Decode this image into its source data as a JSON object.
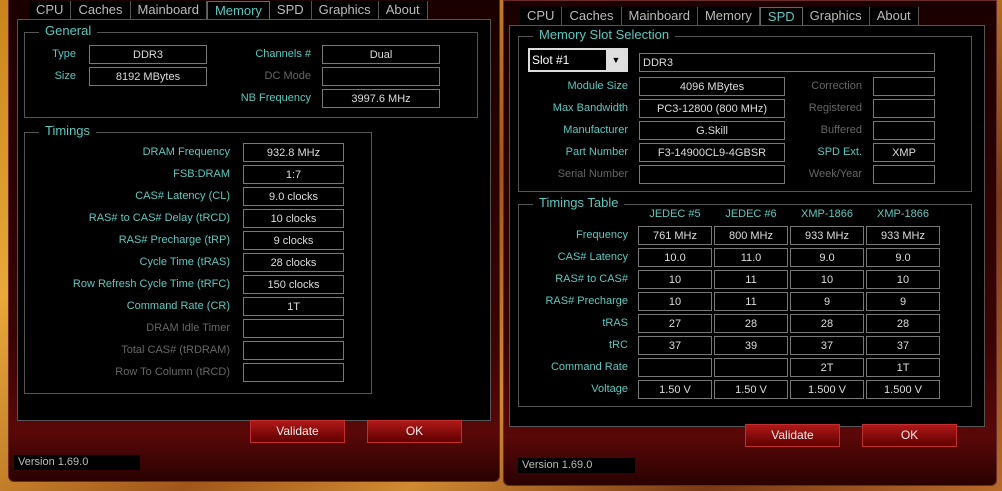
{
  "tabs": [
    "CPU",
    "Caches",
    "Mainboard",
    "Memory",
    "SPD",
    "Graphics",
    "About"
  ],
  "left": {
    "general_title": "General",
    "type_label": "Type",
    "type": "DDR3",
    "size_label": "Size",
    "size": "8192 MBytes",
    "channels_label": "Channels #",
    "channels": "Dual",
    "dc_mode_label": "DC Mode",
    "dc_mode": "",
    "nb_freq_label": "NB Frequency",
    "nb_freq": "3997.6 MHz",
    "timings_title": "Timings",
    "timings": [
      {
        "label": "DRAM Frequency",
        "value": "932.8 MHz"
      },
      {
        "label": "FSB:DRAM",
        "value": "1:7"
      },
      {
        "label": "CAS# Latency (CL)",
        "value": "9.0 clocks"
      },
      {
        "label": "RAS# to CAS# Delay (tRCD)",
        "value": "10 clocks"
      },
      {
        "label": "RAS# Precharge (tRP)",
        "value": "9 clocks"
      },
      {
        "label": "Cycle Time (tRAS)",
        "value": "28 clocks"
      },
      {
        "label": "Row Refresh Cycle Time (tRFC)",
        "value": "150 clocks"
      },
      {
        "label": "Command Rate (CR)",
        "value": "1T"
      },
      {
        "label": "DRAM Idle Timer",
        "value": ""
      },
      {
        "label": "Total CAS# (tRDRAM)",
        "value": ""
      },
      {
        "label": "Row To Column (tRCD)",
        "value": ""
      }
    ]
  },
  "right": {
    "slot_title": "Memory Slot Selection",
    "slot": "Slot #1",
    "mem_type": "DDR3",
    "rows": [
      {
        "label": "Module Size",
        "value": "4096 MBytes",
        "rlabel": "Correction",
        "rvalue": ""
      },
      {
        "label": "Max Bandwidth",
        "value": "PC3-12800 (800 MHz)",
        "rlabel": "Registered",
        "rvalue": ""
      },
      {
        "label": "Manufacturer",
        "value": "G.Skill",
        "rlabel": "Buffered",
        "rvalue": ""
      },
      {
        "label": "Part Number",
        "value": "F3-14900CL9-4GBSR",
        "rlabel": "SPD Ext.",
        "rvalue": "XMP"
      },
      {
        "label": "Serial Number",
        "value": "",
        "rlabel": "Week/Year",
        "rvalue": ""
      }
    ],
    "table_title": "Timings Table",
    "columns": [
      "JEDEC #5",
      "JEDEC #6",
      "XMP-1866",
      "XMP-1866"
    ],
    "table": [
      {
        "label": "Frequency",
        "values": [
          "761 MHz",
          "800 MHz",
          "933 MHz",
          "933 MHz"
        ]
      },
      {
        "label": "CAS# Latency",
        "values": [
          "10.0",
          "11.0",
          "9.0",
          "9.0"
        ]
      },
      {
        "label": "RAS# to CAS#",
        "values": [
          "10",
          "11",
          "10",
          "10"
        ]
      },
      {
        "label": "RAS# Precharge",
        "values": [
          "10",
          "11",
          "9",
          "9"
        ]
      },
      {
        "label": "tRAS",
        "values": [
          "27",
          "28",
          "28",
          "28"
        ]
      },
      {
        "label": "tRC",
        "values": [
          "37",
          "39",
          "37",
          "37"
        ]
      },
      {
        "label": "Command Rate",
        "values": [
          "",
          "",
          "2T",
          "1T"
        ]
      },
      {
        "label": "Voltage",
        "values": [
          "1.50 V",
          "1.50 V",
          "1.500 V",
          "1.500 V"
        ]
      }
    ]
  },
  "buttons": {
    "validate": "Validate",
    "ok": "OK"
  },
  "version": "Version 1.69.0"
}
